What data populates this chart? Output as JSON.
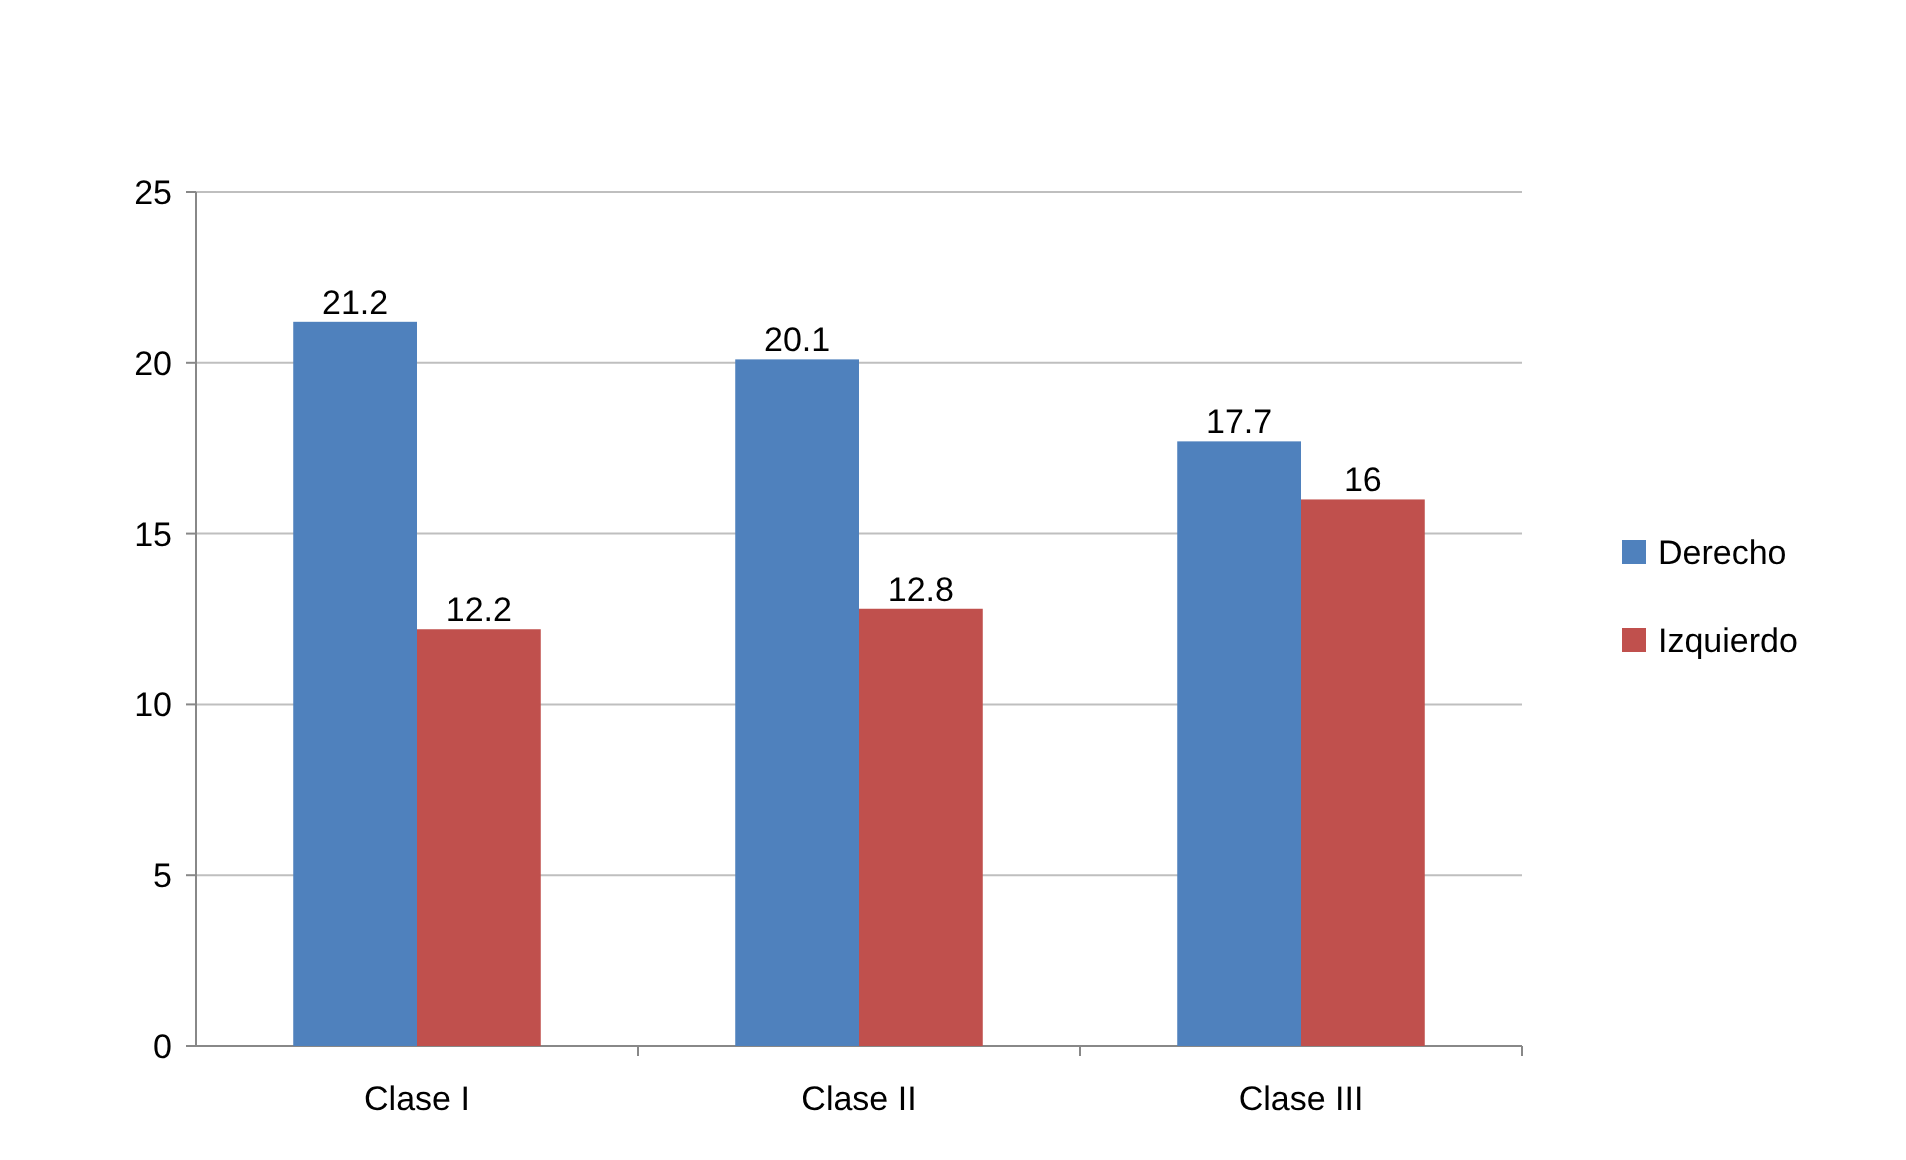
{
  "chart_data": {
    "type": "bar",
    "categories": [
      "Clase I",
      "Clase II",
      "Clase III"
    ],
    "series": [
      {
        "name": "Derecho",
        "color": "#4f81bd",
        "values": [
          21.2,
          20.1,
          17.7
        ]
      },
      {
        "name": "Izquierdo",
        "color": "#c0504d",
        "values": [
          12.2,
          12.8,
          16
        ]
      }
    ],
    "ylim": [
      0,
      25
    ],
    "yticks": [
      0,
      5,
      10,
      15,
      20,
      25
    ],
    "grid": "y",
    "legend": "right",
    "data_labels": true
  }
}
